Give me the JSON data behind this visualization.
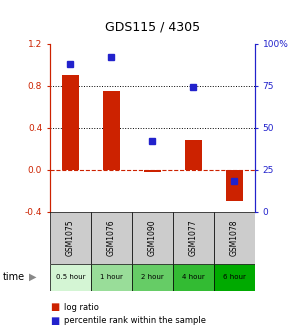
{
  "title": "GDS115 / 4305",
  "samples": [
    "GSM1075",
    "GSM1076",
    "GSM1090",
    "GSM1077",
    "GSM1078"
  ],
  "time_labels": [
    "0.5 hour",
    "1 hour",
    "2 hour",
    "4 hour",
    "6 hour"
  ],
  "time_colors": [
    "#d4f5d4",
    "#99dd99",
    "#66cc66",
    "#33bb33",
    "#00aa00"
  ],
  "log_ratios": [
    0.9,
    0.75,
    -0.02,
    0.28,
    -0.3
  ],
  "percentile_ranks": [
    88,
    92,
    42,
    74,
    18
  ],
  "bar_color": "#cc2200",
  "dot_color": "#2222cc",
  "ylim_left": [
    -0.4,
    1.2
  ],
  "ylim_right": [
    0,
    100
  ],
  "yticks_left": [
    -0.4,
    0.0,
    0.4,
    0.8,
    1.2
  ],
  "yticks_right": [
    0,
    25,
    50,
    75,
    100
  ],
  "zero_line_color": "#cc2200",
  "bg_color": "#ffffff",
  "header_bg": "#cccccc",
  "legend_bar_label": "log ratio",
  "legend_dot_label": "percentile rank within the sample"
}
